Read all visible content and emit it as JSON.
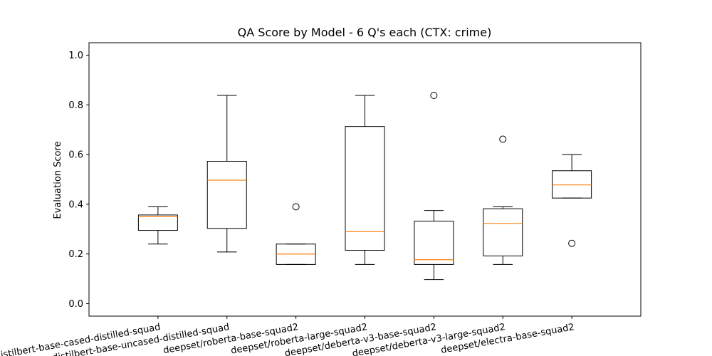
{
  "chart_data": {
    "type": "box",
    "title": "QA Score by Model - 6 Q's each (CTX: crime)",
    "xlabel": "",
    "ylabel": "Evaluation Score",
    "ylim": [
      -0.05,
      1.05
    ],
    "yticks": [
      "0.0",
      "0.2",
      "0.4",
      "0.6",
      "0.8",
      "1.0"
    ],
    "grid": false,
    "categories": [
      "distilbert-base-cased-distilled-squad",
      "distilbert-base-uncased-distilled-squad",
      "deepset/roberta-base-squad2",
      "deepset/roberta-large-squad2",
      "deepset/deberta-v3-base-squad2",
      "deepset/deberta-v3-large-squad2",
      "deepset/electra-base-squad2"
    ],
    "boxes": [
      {
        "whisker_low": 0.24,
        "q1": 0.295,
        "median": 0.35,
        "q3": 0.357,
        "whisker_high": 0.39,
        "outliers": []
      },
      {
        "whisker_low": 0.208,
        "q1": 0.303,
        "median": 0.497,
        "q3": 0.573,
        "whisker_high": 0.838,
        "outliers": []
      },
      {
        "whisker_low": 0.158,
        "q1": 0.158,
        "median": 0.2,
        "q3": 0.24,
        "whisker_high": 0.24,
        "outliers": [
          0.39
        ]
      },
      {
        "whisker_low": 0.158,
        "q1": 0.215,
        "median": 0.29,
        "q3": 0.713,
        "whisker_high": 0.838,
        "outliers": []
      },
      {
        "whisker_low": 0.097,
        "q1": 0.158,
        "median": 0.177,
        "q3": 0.332,
        "whisker_high": 0.375,
        "outliers": [
          0.838
        ]
      },
      {
        "whisker_low": 0.158,
        "q1": 0.192,
        "median": 0.323,
        "q3": 0.382,
        "whisker_high": 0.39,
        "outliers": [
          0.662
        ]
      },
      {
        "whisker_low": 0.425,
        "q1": 0.425,
        "median": 0.478,
        "q3": 0.535,
        "whisker_high": 0.6,
        "outliers": [
          0.243
        ]
      }
    ],
    "colors": {
      "box": "#000000",
      "median": "#ff7f0e",
      "outlier": "#000000"
    }
  }
}
